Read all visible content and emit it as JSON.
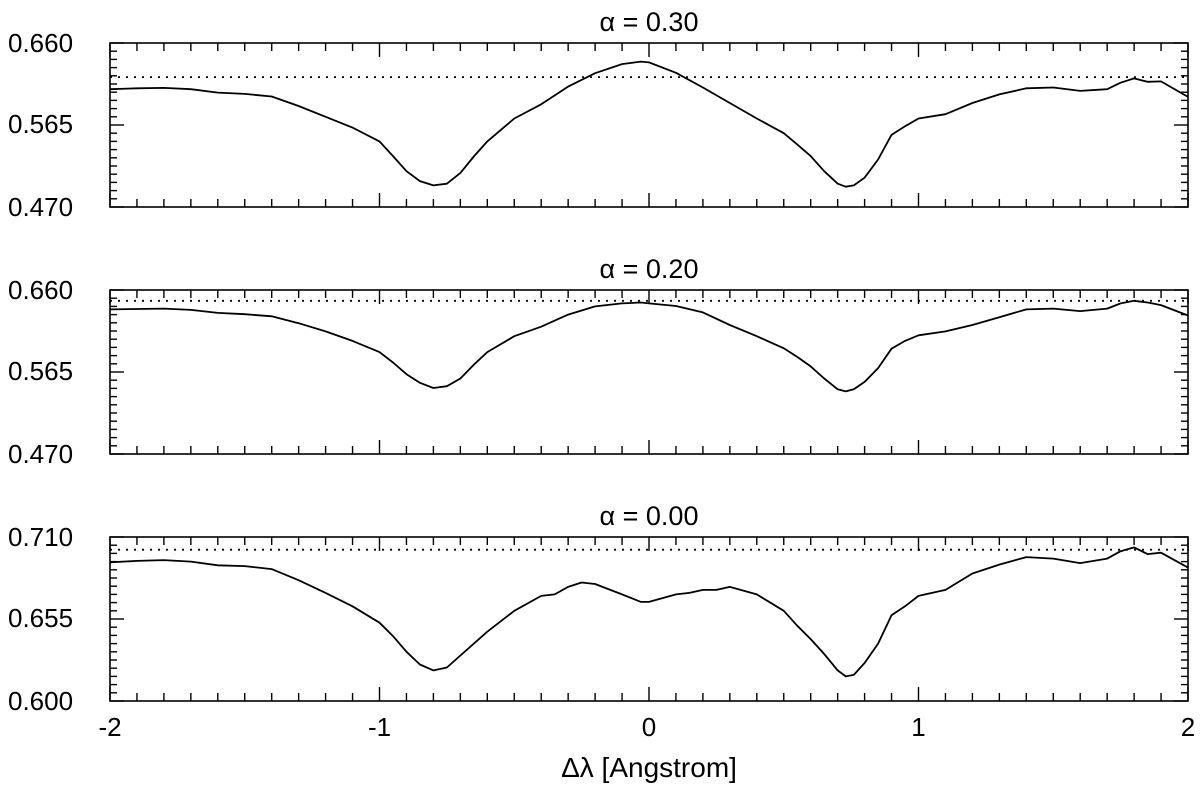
{
  "chart_data": [
    {
      "type": "line",
      "title": "α = 0.30",
      "xlabel": "",
      "ylabel": "",
      "xlim": [
        -2,
        2
      ],
      "ylim": [
        0.47,
        0.66
      ],
      "yticks": [
        "0.470",
        "0.565",
        "0.660"
      ],
      "xticks": [],
      "grid": false,
      "reference_line": {
        "style": "dotted",
        "y": 0.6205
      },
      "series": [
        {
          "x": [
            -2.0,
            -1.9,
            -1.8,
            -1.7,
            -1.6,
            -1.5,
            -1.4,
            -1.3,
            -1.2,
            -1.1,
            -1.0,
            -0.95,
            -0.9,
            -0.85,
            -0.8,
            -0.75,
            -0.7,
            -0.65,
            -0.6,
            -0.5,
            -0.4,
            -0.3,
            -0.2,
            -0.1,
            -0.03,
            0.0,
            0.1,
            0.2,
            0.3,
            0.4,
            0.5,
            0.55,
            0.6,
            0.65,
            0.7,
            0.73,
            0.76,
            0.8,
            0.85,
            0.9,
            0.95,
            1.0,
            1.1,
            1.2,
            1.3,
            1.4,
            1.5,
            1.6,
            1.7,
            1.75,
            1.8,
            1.85,
            1.9,
            2.0
          ],
          "y": [
            0.6065,
            0.6075,
            0.608,
            0.6065,
            0.6025,
            0.601,
            0.598,
            0.587,
            0.5745,
            0.562,
            0.546,
            0.529,
            0.5115,
            0.5,
            0.495,
            0.497,
            0.5095,
            0.5285,
            0.546,
            0.5725,
            0.589,
            0.6095,
            0.625,
            0.6355,
            0.6385,
            0.6375,
            0.6255,
            0.6085,
            0.5905,
            0.5725,
            0.5555,
            0.5425,
            0.529,
            0.5115,
            0.497,
            0.4935,
            0.495,
            0.504,
            0.525,
            0.5535,
            0.5635,
            0.5725,
            0.5775,
            0.5905,
            0.6005,
            0.6075,
            0.6085,
            0.6045,
            0.6065,
            0.614,
            0.619,
            0.615,
            0.6155,
            0.5975
          ]
        }
      ]
    },
    {
      "type": "line",
      "title": "α = 0.20",
      "xlabel": "",
      "ylabel": "",
      "xlim": [
        -2,
        2
      ],
      "ylim": [
        0.47,
        0.66
      ],
      "yticks": [
        "0.470",
        "0.565",
        "0.660"
      ],
      "xticks": [],
      "grid": false,
      "reference_line": {
        "style": "dotted",
        "y": 0.6475
      },
      "series": [
        {
          "x": [
            -2.0,
            -1.9,
            -1.8,
            -1.7,
            -1.6,
            -1.5,
            -1.4,
            -1.3,
            -1.2,
            -1.1,
            -1.0,
            -0.95,
            -0.9,
            -0.85,
            -0.8,
            -0.75,
            -0.7,
            -0.65,
            -0.6,
            -0.5,
            -0.4,
            -0.3,
            -0.2,
            -0.1,
            -0.03,
            0.0,
            0.1,
            0.2,
            0.3,
            0.4,
            0.5,
            0.55,
            0.6,
            0.65,
            0.7,
            0.73,
            0.76,
            0.8,
            0.85,
            0.9,
            0.95,
            1.0,
            1.1,
            1.2,
            1.3,
            1.4,
            1.5,
            1.6,
            1.7,
            1.75,
            1.8,
            1.85,
            1.9,
            2.0
          ],
          "y": [
            0.6375,
            0.638,
            0.6385,
            0.637,
            0.6335,
            0.632,
            0.6295,
            0.6215,
            0.612,
            0.601,
            0.588,
            0.576,
            0.5625,
            0.5525,
            0.5465,
            0.5485,
            0.5575,
            0.5735,
            0.588,
            0.6065,
            0.6175,
            0.6315,
            0.641,
            0.6445,
            0.6455,
            0.6445,
            0.6415,
            0.634,
            0.6195,
            0.6065,
            0.5925,
            0.5825,
            0.5715,
            0.5575,
            0.545,
            0.5425,
            0.545,
            0.5535,
            0.5695,
            0.592,
            0.601,
            0.6075,
            0.612,
            0.6195,
            0.6285,
            0.6375,
            0.6385,
            0.6355,
            0.6385,
            0.6445,
            0.6475,
            0.6455,
            0.6425,
            0.6305
          ]
        }
      ]
    },
    {
      "type": "line",
      "title": "α = 0.00",
      "xlabel": "Δλ [Angstrom]",
      "ylabel": "",
      "xlim": [
        -2,
        2
      ],
      "ylim": [
        0.6,
        0.71
      ],
      "yticks": [
        "0.600",
        "0.655",
        "0.710"
      ],
      "xticks": [
        "-2",
        "-1",
        "0",
        "1",
        "2"
      ],
      "grid": false,
      "reference_line": {
        "style": "dotted",
        "y": 0.7015
      },
      "series": [
        {
          "x": [
            -2.0,
            -1.9,
            -1.8,
            -1.7,
            -1.6,
            -1.5,
            -1.4,
            -1.3,
            -1.2,
            -1.1,
            -1.0,
            -0.95,
            -0.9,
            -0.85,
            -0.8,
            -0.75,
            -0.7,
            -0.6,
            -0.5,
            -0.4,
            -0.35,
            -0.3,
            -0.25,
            -0.2,
            -0.1,
            -0.03,
            0.0,
            0.1,
            0.15,
            0.2,
            0.25,
            0.3,
            0.4,
            0.5,
            0.55,
            0.6,
            0.65,
            0.7,
            0.73,
            0.76,
            0.8,
            0.85,
            0.9,
            0.95,
            1.0,
            1.1,
            1.2,
            1.3,
            1.4,
            1.5,
            1.6,
            1.7,
            1.75,
            1.8,
            1.85,
            1.9,
            2.0
          ],
          "y": [
            0.693,
            0.694,
            0.6945,
            0.6935,
            0.691,
            0.6905,
            0.6885,
            0.681,
            0.6725,
            0.6635,
            0.6525,
            0.6435,
            0.633,
            0.6245,
            0.6205,
            0.6225,
            0.6305,
            0.6465,
            0.6605,
            0.6705,
            0.6715,
            0.6765,
            0.6795,
            0.6785,
            0.6715,
            0.6665,
            0.6665,
            0.6715,
            0.6725,
            0.6745,
            0.6745,
            0.6765,
            0.6715,
            0.6605,
            0.6505,
            0.6415,
            0.6315,
            0.6205,
            0.6165,
            0.6175,
            0.6255,
            0.6385,
            0.6575,
            0.6635,
            0.6705,
            0.6745,
            0.6855,
            0.6915,
            0.6965,
            0.6955,
            0.6925,
            0.6955,
            0.7005,
            0.703,
            0.6985,
            0.6995,
            0.6895
          ]
        }
      ]
    }
  ]
}
